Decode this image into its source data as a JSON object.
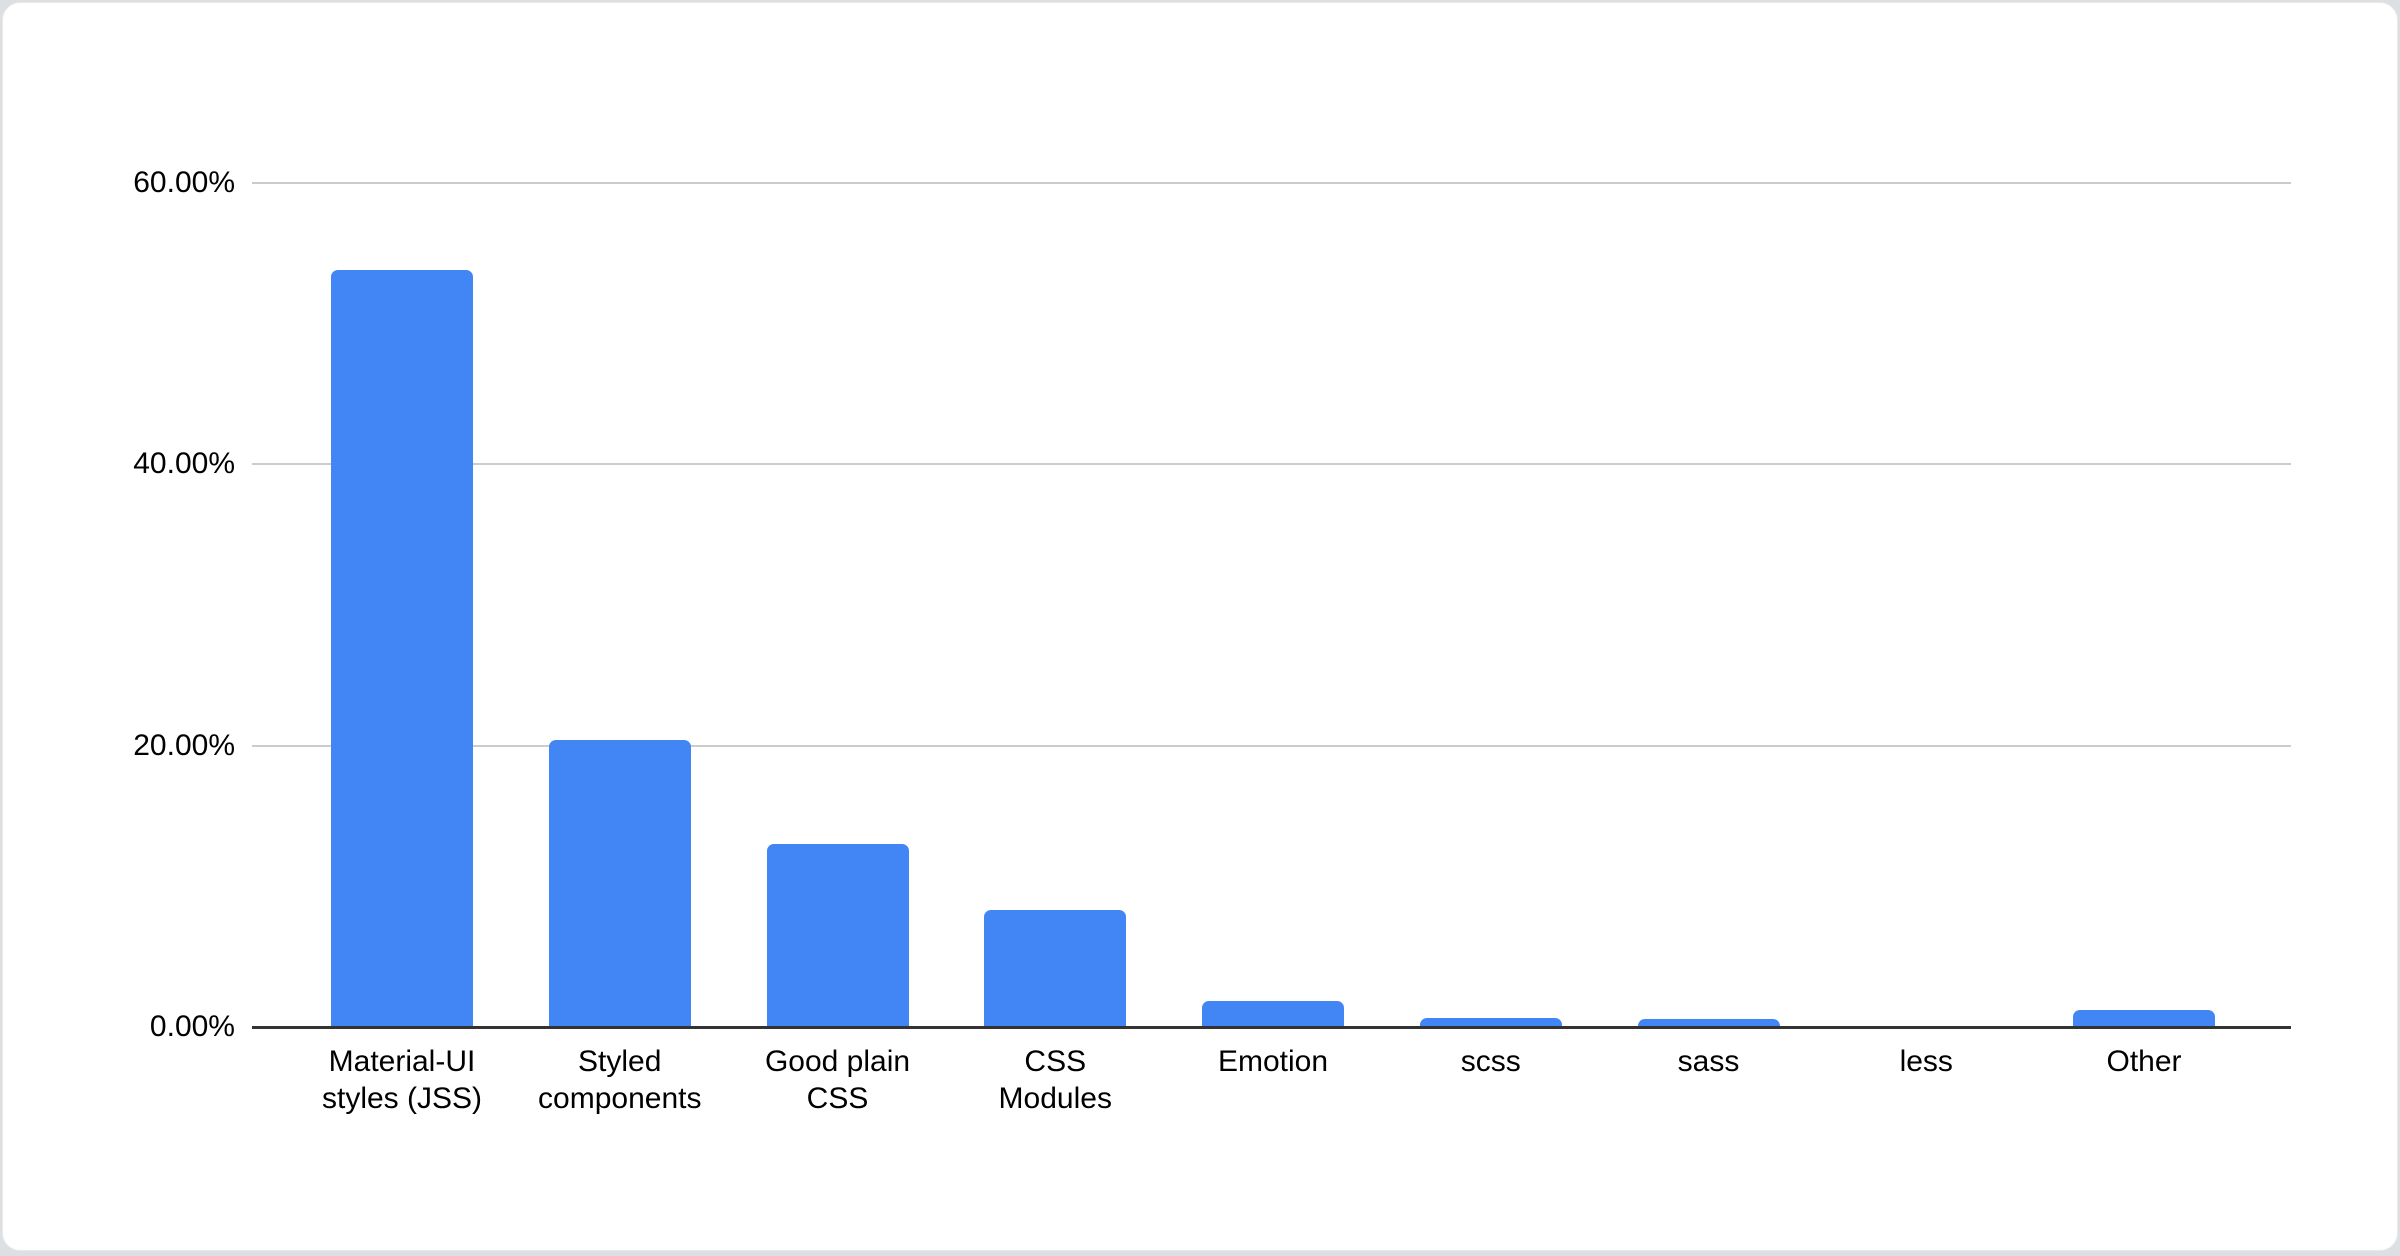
{
  "page": {
    "background_color": "#dce0e3",
    "card_background_color": "#ffffff"
  },
  "chart_data": {
    "type": "bar",
    "categories": [
      "Material-UI styles (JSS)",
      "Styled components",
      "Good plain CSS",
      "CSS Modules",
      "Emotion",
      "scss",
      "sass",
      "less",
      "Other"
    ],
    "category_label_lines": [
      "Material-UI\nstyles (JSS)",
      "Styled\ncomponents",
      "Good plain\nCSS",
      "CSS\nModules",
      "Emotion",
      "scss",
      "sass",
      "less",
      "Other"
    ],
    "values": [
      53.84,
      20.41,
      13.01,
      8.31,
      1.86,
      0.62,
      0.59,
      0.1,
      1.2
    ],
    "title": "",
    "xlabel": "",
    "ylabel": "",
    "ylim": [
      0,
      60
    ],
    "yticks": [
      {
        "value": 0,
        "label": "0.00%"
      },
      {
        "value": 20,
        "label": "20.00%"
      },
      {
        "value": 40,
        "label": "40.00%"
      },
      {
        "value": 60,
        "label": "60.00%"
      }
    ],
    "grid": true,
    "legend": "none",
    "bar_color": "#4285F4",
    "gridline_color": "#cccccc",
    "axis_color": "#333333",
    "text_color": "#000000"
  }
}
